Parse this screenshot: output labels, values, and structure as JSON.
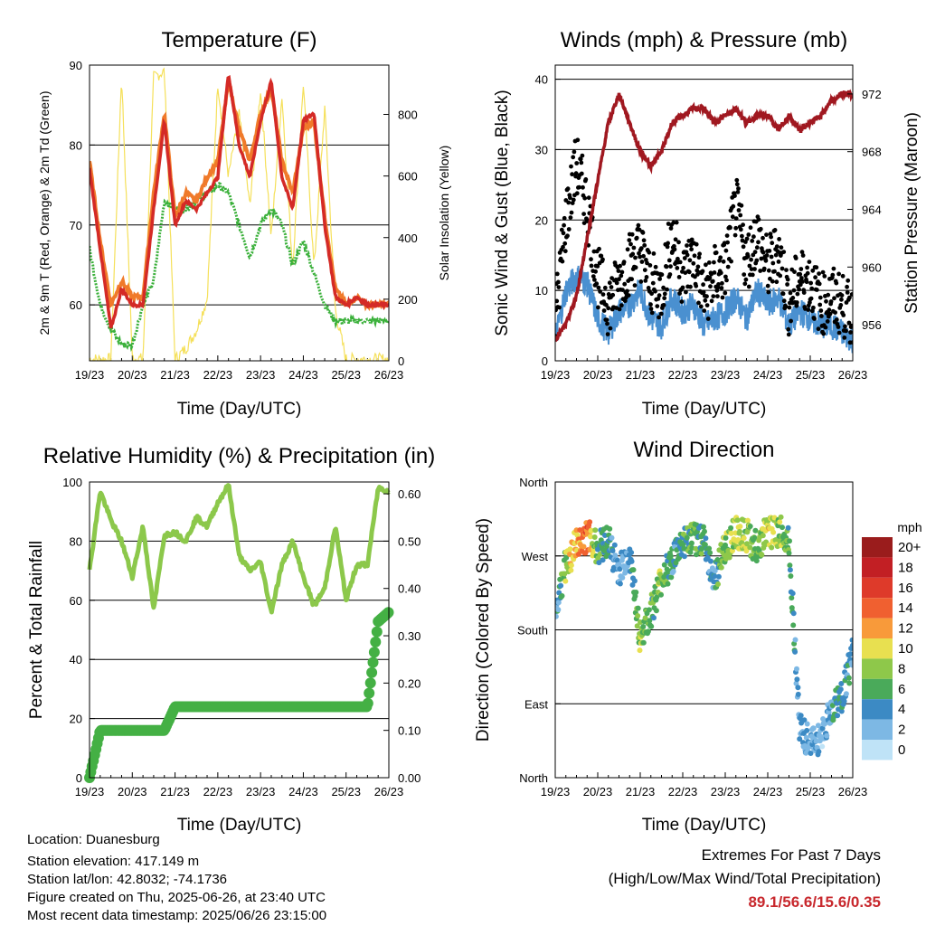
{
  "x_ticks": [
    "19/23",
    "20/23",
    "21/23",
    "22/23",
    "23/23",
    "24/23",
    "25/23",
    "26/23"
  ],
  "colors": {
    "temp2m": "#d42a26",
    "temp9m": "#f07a2a",
    "dewpoint": "#3ab03a",
    "solar": "#f5e05a",
    "wind": "#4a90d0",
    "gust": "#000000",
    "pressure": "#a01820",
    "rh": "#8cc84b",
    "precip": "#44b044"
  },
  "chart_data": [
    {
      "id": "temperature",
      "type": "line",
      "title": "Temperature (F)",
      "xlabel": "Time (Day/UTC)",
      "ylabel": "2m & 9m T (Red, Orange) & 2m Td (Green)",
      "y2label": "Solar Insolation (Yellow)",
      "xlim": [
        0,
        7
      ],
      "ylim": [
        53,
        90
      ],
      "y_ticks": [
        60,
        70,
        80,
        90
      ],
      "y2lim": [
        0,
        960
      ],
      "y2_ticks": [
        0,
        200,
        400,
        600,
        800
      ],
      "x": [
        0,
        0.25,
        0.5,
        0.75,
        1,
        1.25,
        1.5,
        1.75,
        2,
        2.25,
        2.5,
        2.75,
        3,
        3.25,
        3.5,
        3.75,
        4,
        4.25,
        4.5,
        4.75,
        5,
        5.25,
        5.5,
        5.75,
        6,
        6.25,
        6.5,
        6.75,
        7
      ],
      "series": [
        {
          "key": "temp9m",
          "values": [
            78,
            68,
            60,
            63,
            61,
            61,
            74,
            84,
            71,
            74,
            73,
            76,
            78,
            88,
            82,
            78,
            84,
            87,
            78,
            74,
            82,
            83,
            71,
            62,
            60,
            61,
            60,
            60,
            60
          ]
        },
        {
          "key": "temp2m",
          "values": [
            77,
            67,
            57,
            62,
            60,
            60,
            72,
            83,
            70,
            73,
            72,
            74,
            76,
            89,
            80,
            76,
            83,
            88,
            76,
            72,
            83,
            84,
            70,
            61,
            60,
            61,
            60,
            60,
            60
          ]
        },
        {
          "key": "dewpoint",
          "values": [
            67,
            60,
            57,
            55,
            55,
            60,
            63,
            73,
            72,
            72,
            73,
            74,
            75,
            74,
            70,
            66,
            70,
            72,
            70,
            65,
            68,
            64,
            60,
            58,
            58,
            58,
            58,
            58,
            58
          ]
        },
        {
          "key": "solar",
          "values": [
            5,
            5,
            5,
            930,
            10,
            5,
            920,
            940,
            5,
            40,
            100,
            200,
            900,
            600,
            800,
            500,
            880,
            400,
            860,
            300,
            900,
            300,
            820,
            160,
            5,
            5,
            5,
            5,
            5
          ]
        }
      ]
    },
    {
      "id": "winds",
      "type": "line",
      "title": "Winds (mph) & Pressure (mb)",
      "xlabel": "Time (Day/UTC)",
      "ylabel": "Sonic Wind & Gust (Blue, Black)",
      "y2label": "Station Pressure (Maroon)",
      "xlim": [
        0,
        7
      ],
      "ylim": [
        0,
        42
      ],
      "y_ticks": [
        0,
        10,
        20,
        30,
        40
      ],
      "y2lim": [
        953.5,
        974
      ],
      "y2_ticks": [
        956,
        960,
        964,
        968,
        972
      ],
      "x": [
        0,
        0.25,
        0.5,
        0.75,
        1,
        1.25,
        1.5,
        1.75,
        2,
        2.25,
        2.5,
        2.75,
        3,
        3.25,
        3.5,
        3.75,
        4,
        4.25,
        4.5,
        4.75,
        5,
        5.25,
        5.5,
        5.75,
        6,
        6.25,
        6.5,
        6.75,
        7
      ],
      "series": [
        {
          "key": "wind",
          "values": [
            3,
            10,
            12,
            11,
            6,
            4,
            7,
            8,
            10,
            6,
            5,
            9,
            7,
            8,
            5,
            6,
            7,
            9,
            6,
            10,
            8,
            9,
            5,
            7,
            6,
            5,
            5,
            4,
            3
          ]
        },
        {
          "key": "gust",
          "values": [
            6,
            20,
            28,
            22,
            12,
            8,
            11,
            14,
            16,
            11,
            10,
            18,
            12,
            15,
            9,
            12,
            13,
            22,
            14,
            18,
            13,
            16,
            8,
            12,
            11,
            8,
            9,
            8,
            6
          ]
        },
        {
          "key": "pressure",
          "values": [
            955,
            956,
            958,
            962,
            966,
            970,
            972,
            970,
            968,
            967,
            968,
            970,
            970.5,
            971,
            971,
            970,
            970.5,
            971,
            970,
            970.5,
            970.5,
            969.5,
            970.5,
            969.5,
            970,
            970.5,
            971.5,
            972,
            972
          ]
        }
      ]
    },
    {
      "id": "humidity",
      "type": "line",
      "title": "Relative Humidity (%) & Precipitation (in)",
      "xlabel": "Time (Day/UTC)",
      "ylabel": "Percent & Total Rainfall",
      "xlim": [
        0,
        7
      ],
      "ylim": [
        0,
        100
      ],
      "y_ticks": [
        0,
        20,
        40,
        60,
        80,
        100
      ],
      "y2lim": [
        0,
        0.625
      ],
      "y2_ticks": [
        "0.00",
        "0.10",
        "0.20",
        "0.30",
        "0.40",
        "0.50",
        "0.60"
      ],
      "x": [
        0,
        0.25,
        0.5,
        0.75,
        1,
        1.25,
        1.5,
        1.75,
        2,
        2.25,
        2.5,
        2.75,
        3,
        3.25,
        3.5,
        3.75,
        4,
        4.25,
        4.5,
        4.75,
        5,
        5.25,
        5.5,
        5.75,
        6,
        6.25,
        6.5,
        6.75,
        7
      ],
      "series": [
        {
          "key": "rh",
          "values": [
            70,
            97,
            87,
            80,
            68,
            85,
            57,
            82,
            83,
            80,
            88,
            85,
            93,
            99,
            75,
            70,
            73,
            56,
            72,
            80,
            68,
            58,
            64,
            85,
            60,
            72,
            72,
            98,
            97
          ]
        },
        {
          "key": "precip",
          "values": [
            0,
            0.1,
            0.1,
            0.1,
            0.1,
            0.1,
            0.1,
            0.1,
            0.15,
            0.15,
            0.15,
            0.15,
            0.15,
            0.15,
            0.15,
            0.15,
            0.15,
            0.15,
            0.15,
            0.15,
            0.15,
            0.15,
            0.15,
            0.15,
            0.15,
            0.15,
            0.15,
            0.33,
            0.35
          ]
        }
      ]
    },
    {
      "id": "direction",
      "type": "scatter",
      "title": "Wind Direction",
      "xlabel": "Time (Day/UTC)",
      "ylabel": "Direction (Colored By Speed)",
      "xlim": [
        0,
        7
      ],
      "ylim": [
        0,
        360
      ],
      "y_tick_values": [
        0,
        90,
        180,
        270,
        360
      ],
      "y_tick_labels": [
        "North",
        "East",
        "South",
        "West",
        "North"
      ],
      "x": [
        0,
        0.25,
        0.5,
        0.75,
        1,
        1.25,
        1.5,
        1.75,
        2,
        2.25,
        2.5,
        2.75,
        3,
        3.25,
        3.5,
        3.75,
        4,
        4.25,
        4.5,
        4.75,
        5,
        5.25,
        5.5,
        5.75,
        6,
        6.25,
        6.5,
        6.75,
        7
      ],
      "direction": [
        200,
        260,
        285,
        295,
        280,
        290,
        250,
        275,
        170,
        200,
        240,
        265,
        285,
        290,
        290,
        240,
        280,
        300,
        295,
        280,
        300,
        300,
        290,
        60,
        40,
        50,
        80,
        100,
        150
      ],
      "speed": [
        3,
        8,
        12,
        14,
        6,
        5,
        3,
        3,
        8,
        6,
        8,
        4,
        6,
        7,
        6,
        4,
        8,
        9,
        8,
        6,
        10,
        8,
        6,
        3,
        3,
        2,
        4,
        5,
        3
      ],
      "legend_title": "mph",
      "legend_labels": [
        "20+",
        "18",
        "16",
        "14",
        "12",
        "10",
        "8",
        "6",
        "4",
        "2",
        "0"
      ],
      "legend_colors": [
        "#9a1c1c",
        "#c21f24",
        "#de3a2a",
        "#f06030",
        "#f89a3a",
        "#e8e050",
        "#8ec84a",
        "#4aaa5a",
        "#3c8ac4",
        "#7db8e4",
        "#bfe3f7"
      ]
    }
  ],
  "info": {
    "location": "Location: Duanesburg",
    "elevation": "Station elevation: 417.149 m",
    "latlon": "Station lat/lon: 42.8032; -74.1736",
    "created": "Figure created on Thu, 2025-06-26, at 23:40 UTC",
    "recent": "Most recent data timestamp: 2025/06/26 23:15:00"
  },
  "extremes": {
    "title": "Extremes For Past 7 Days",
    "subtitle": "(High/Low/Max Wind/Total Precipitation)",
    "value": "89.1/56.6/15.6/0.35"
  }
}
